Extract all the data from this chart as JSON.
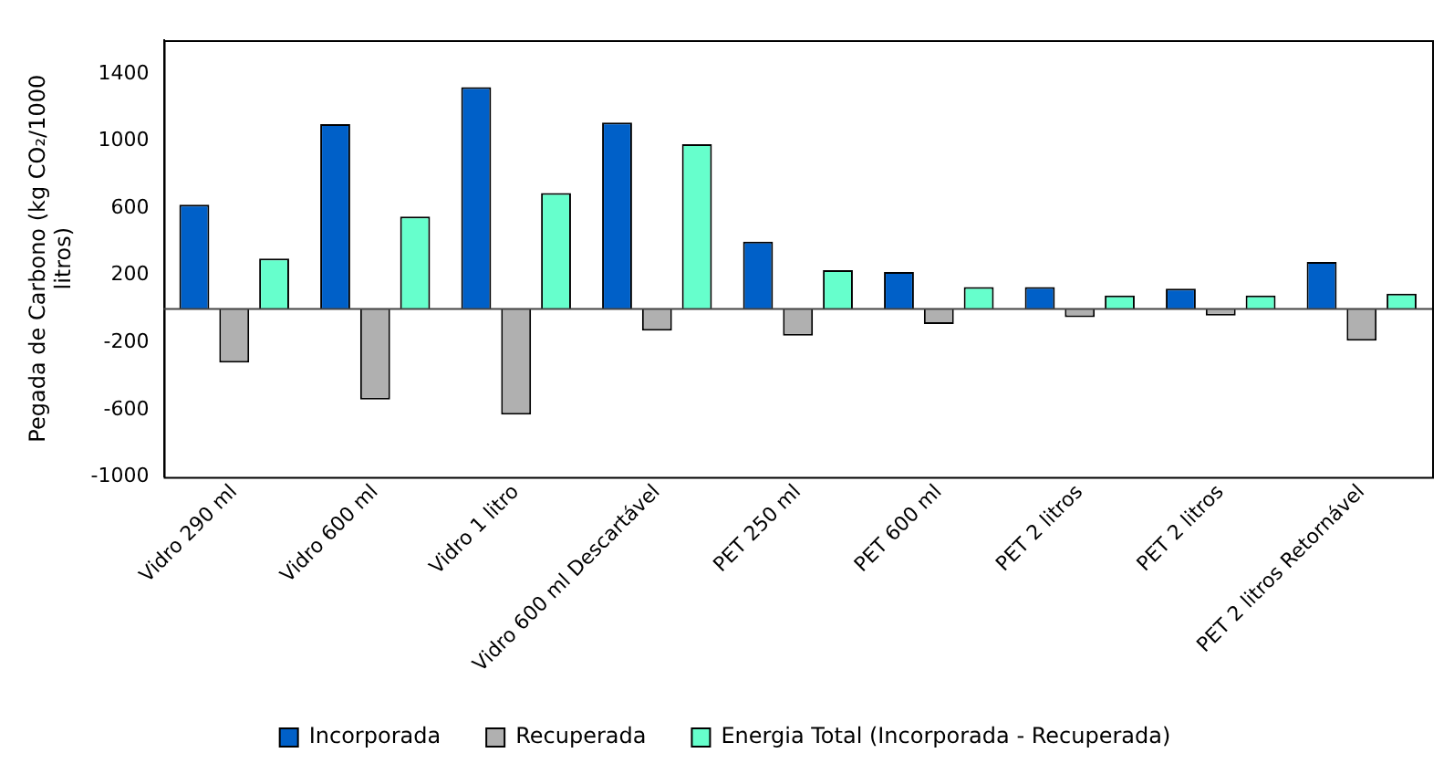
{
  "chart_data": {
    "type": "bar",
    "ylabel": "Pegada de Carbono (kg CO₂/1000 litros)",
    "categories": [
      "Vidro 290 ml",
      "Vidro 600 ml",
      "Vidro 1 litro",
      "Vidro 600 ml Descartável",
      "PET 250 ml",
      "PET 600 ml",
      "PET 2 litros",
      "PET 2 litros",
      "PET 2 litros Retornável"
    ],
    "series": [
      {
        "name": "Incorporada",
        "color": "#0060c8",
        "values": [
          620,
          1100,
          1320,
          1110,
          400,
          220,
          130,
          120,
          280
        ]
      },
      {
        "name": "Recuperada",
        "color": "#b0b0b0",
        "values": [
          -320,
          -540,
          -630,
          -130,
          -160,
          -90,
          -50,
          -40,
          -190
        ]
      },
      {
        "name": "Energia Total (Incorporada - Recuperada)",
        "color": "#66ffcc",
        "values": [
          300,
          550,
          690,
          980,
          230,
          130,
          80,
          80,
          90
        ]
      }
    ],
    "ylim": [
      -1000,
      1600
    ],
    "yticks": [
      -1000,
      -600,
      -200,
      200,
      600,
      1000,
      1400
    ],
    "grid": false,
    "legend": "bottom"
  }
}
